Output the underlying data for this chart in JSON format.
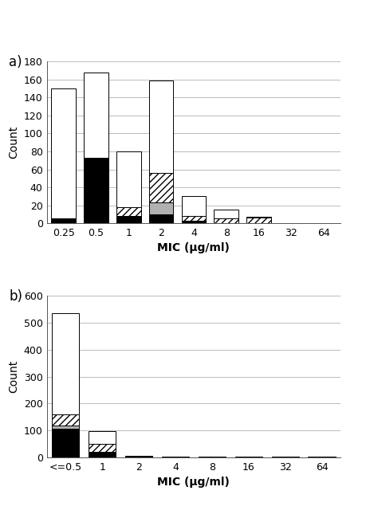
{
  "panel_a": {
    "categories": [
      "0.25",
      "0.5",
      "1",
      "2",
      "4",
      "8",
      "16",
      "32",
      "64"
    ],
    "white": [
      145,
      95,
      62,
      103,
      22,
      10,
      1,
      0,
      0
    ],
    "hatch": [
      0,
      0,
      10,
      33,
      5,
      5,
      6,
      0,
      0
    ],
    "gray": [
      0,
      0,
      0,
      13,
      0,
      0,
      0,
      0,
      0
    ],
    "black": [
      5,
      73,
      8,
      10,
      3,
      0,
      0,
      0,
      0
    ],
    "ylabel": "Count",
    "xlabel": "MIC (μg/ml)",
    "ylim": [
      0,
      180
    ],
    "yticks": [
      0,
      20,
      40,
      60,
      80,
      100,
      120,
      140,
      160,
      180
    ],
    "label": "a)"
  },
  "panel_b": {
    "categories": [
      "<=0.5",
      "1",
      "2",
      "4",
      "8",
      "16",
      "32",
      "64"
    ],
    "white": [
      375,
      48,
      0,
      0,
      0,
      0,
      0,
      0
    ],
    "hatch": [
      40,
      30,
      0,
      0,
      0,
      0,
      0,
      0
    ],
    "gray": [
      12,
      0,
      0,
      0,
      0,
      0,
      0,
      0
    ],
    "black": [
      108,
      20,
      5,
      2,
      2,
      2,
      2,
      2
    ],
    "ylabel": "Count",
    "xlabel": "MIC (μg/ml)",
    "ylim": [
      0,
      600
    ],
    "yticks": [
      0,
      100,
      200,
      300,
      400,
      500,
      600
    ],
    "label": "b)"
  },
  "bar_width": 0.75,
  "color_white": "#ffffff",
  "color_black": "#000000",
  "color_gray": "#b0b0b0",
  "hatch_pattern": "////",
  "hatch_pattern_dot": "....",
  "edge_color": "#000000",
  "grid_color": "#bbbbbb",
  "label_fontsize": 12,
  "tick_fontsize": 9,
  "axis_label_fontsize": 10
}
